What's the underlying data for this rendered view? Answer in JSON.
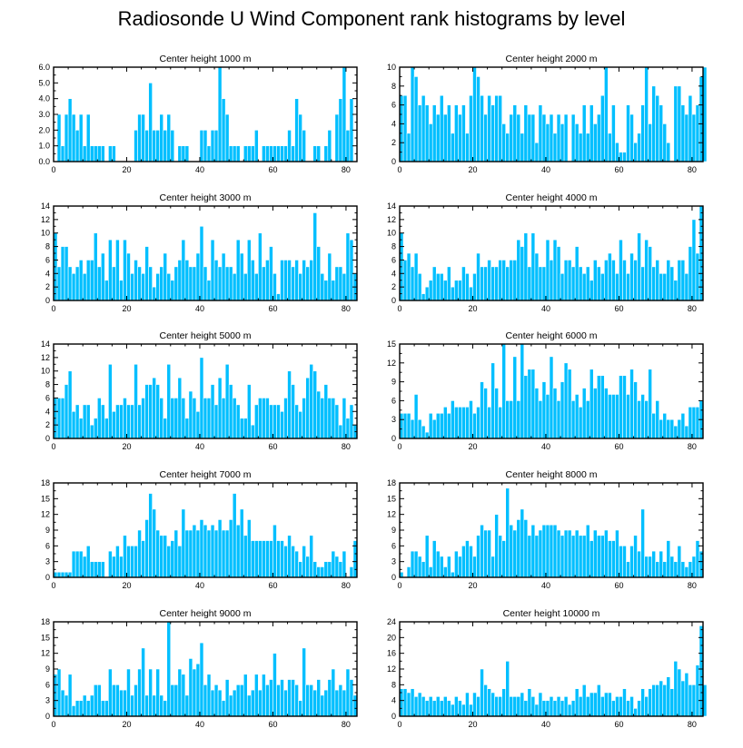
{
  "page_title": "Radiosonde U Wind Component rank histograms by level",
  "colors": {
    "bar": "#00bfff",
    "axis": "#000000"
  },
  "chart_data": [
    {
      "type": "bar",
      "title": "Center height 1000 m",
      "xlim": [
        0,
        83
      ],
      "ylim": [
        0,
        6
      ],
      "xticks": [
        0,
        20,
        40,
        60,
        80
      ],
      "yticks": [
        "0.0",
        "1.0",
        "2.0",
        "3.0",
        "4.0",
        "5.0",
        "6.0"
      ],
      "ytick_values": [
        0,
        1,
        2,
        3,
        4,
        5,
        6
      ],
      "values": [
        0,
        3,
        1,
        3,
        4,
        3,
        2,
        3,
        1,
        3,
        1,
        1,
        1,
        1,
        0,
        1,
        1,
        0,
        0,
        0,
        0,
        0,
        2,
        3,
        3,
        2,
        5,
        2,
        2,
        3,
        2,
        3,
        2,
        0,
        1,
        1,
        1,
        0,
        0,
        0,
        2,
        2,
        1,
        2,
        2,
        6,
        4,
        3,
        1,
        1,
        1,
        0,
        1,
        1,
        1,
        2,
        0,
        1,
        1,
        1,
        1,
        1,
        1,
        1,
        2,
        1,
        4,
        3,
        2,
        0,
        0,
        1,
        1,
        0,
        1,
        2,
        0,
        3,
        4,
        6,
        2,
        4,
        0
      ]
    },
    {
      "type": "bar",
      "title": "Center height 2000 m",
      "xlim": [
        0,
        83
      ],
      "ylim": [
        0,
        10
      ],
      "xticks": [
        0,
        20,
        40,
        60,
        80
      ],
      "yticks": [
        "0",
        "2",
        "4",
        "6",
        "8",
        "10"
      ],
      "ytick_values": [
        0,
        2,
        4,
        6,
        8,
        10
      ],
      "values": [
        7,
        7,
        3,
        10,
        9,
        6,
        7,
        6,
        4,
        6,
        5,
        7,
        5,
        6,
        3,
        6,
        5,
        6,
        3,
        7,
        10,
        9,
        7,
        5,
        7,
        6,
        7,
        7,
        4,
        3,
        5,
        6,
        5,
        3,
        6,
        5,
        5,
        2,
        6,
        5,
        4,
        5,
        3,
        5,
        4,
        5,
        0,
        5,
        4,
        3,
        6,
        3,
        6,
        4,
        5,
        7,
        10,
        3,
        6,
        2,
        1,
        1,
        6,
        5,
        2,
        3,
        6,
        10,
        4,
        8,
        7,
        6,
        4,
        2,
        0,
        8,
        8,
        6,
        5,
        7,
        5,
        6,
        9,
        10
      ]
    },
    {
      "type": "bar",
      "title": "Center height 3000 m",
      "xlim": [
        0,
        83
      ],
      "ylim": [
        0,
        14
      ],
      "xticks": [
        0,
        20,
        40,
        60,
        80
      ],
      "yticks": [
        "0",
        "2",
        "4",
        "6",
        "8",
        "10",
        "12",
        "14"
      ],
      "ytick_values": [
        0,
        2,
        4,
        6,
        8,
        10,
        12,
        14
      ],
      "values": [
        10,
        5,
        8,
        8,
        5,
        4,
        5,
        6,
        4,
        6,
        6,
        10,
        5,
        7,
        3,
        9,
        5,
        9,
        3,
        9,
        7,
        4,
        6,
        5,
        4,
        8,
        5,
        2,
        4,
        5,
        7,
        4,
        3,
        5,
        6,
        9,
        6,
        5,
        5,
        7,
        11,
        5,
        3,
        9,
        6,
        5,
        7,
        5,
        5,
        4,
        9,
        7,
        4,
        9,
        6,
        4,
        10,
        5,
        6,
        8,
        4,
        1,
        6,
        6,
        6,
        5,
        6,
        4,
        6,
        5,
        6,
        13,
        8,
        4,
        3,
        7,
        3,
        5,
        5,
        4,
        10,
        9,
        4
      ]
    },
    {
      "type": "bar",
      "title": "Center height 4000 m",
      "xlim": [
        0,
        83
      ],
      "ylim": [
        0,
        14
      ],
      "xticks": [
        0,
        20,
        40,
        60,
        80
      ],
      "yticks": [
        "0",
        "2",
        "4",
        "6",
        "8",
        "10",
        "12",
        "14"
      ],
      "ytick_values": [
        0,
        2,
        4,
        6,
        8,
        10,
        12,
        14
      ],
      "values": [
        10,
        6,
        7,
        5,
        7,
        4,
        1,
        2,
        3,
        5,
        4,
        4,
        3,
        5,
        2,
        3,
        3,
        5,
        4,
        2,
        4,
        7,
        5,
        5,
        6,
        5,
        5,
        6,
        6,
        5,
        6,
        6,
        9,
        8,
        10,
        5,
        10,
        7,
        5,
        5,
        9,
        6,
        9,
        8,
        4,
        6,
        6,
        5,
        8,
        5,
        4,
        5,
        3,
        6,
        5,
        4,
        6,
        7,
        6,
        4,
        9,
        6,
        4,
        7,
        6,
        10,
        5,
        9,
        8,
        5,
        6,
        4,
        4,
        6,
        5,
        3,
        6,
        6,
        4,
        8,
        12,
        7,
        14
      ]
    },
    {
      "type": "bar",
      "title": "Center height 5000 m",
      "xlim": [
        0,
        83
      ],
      "ylim": [
        0,
        14
      ],
      "xticks": [
        0,
        20,
        40,
        60,
        80
      ],
      "yticks": [
        "0",
        "2",
        "4",
        "6",
        "8",
        "10",
        "12",
        "14"
      ],
      "ytick_values": [
        0,
        2,
        4,
        6,
        8,
        10,
        12,
        14
      ],
      "values": [
        6,
        6,
        6,
        8,
        10,
        4,
        5,
        3,
        5,
        5,
        2,
        3,
        6,
        5,
        3,
        11,
        4,
        5,
        5,
        6,
        5,
        5,
        11,
        5,
        6,
        8,
        8,
        9,
        8,
        6,
        3,
        11,
        6,
        6,
        9,
        6,
        3,
        7,
        6,
        4,
        12,
        6,
        6,
        8,
        5,
        9,
        6,
        11,
        8,
        6,
        5,
        3,
        3,
        8,
        2,
        5,
        6,
        6,
        6,
        5,
        5,
        5,
        4,
        6,
        10,
        8,
        5,
        4,
        6,
        9,
        11,
        10,
        7,
        6,
        8,
        6,
        6,
        5,
        2,
        6,
        3,
        5,
        2
      ]
    },
    {
      "type": "bar",
      "title": "Center height 6000 m",
      "xlim": [
        0,
        83
      ],
      "ylim": [
        0,
        15
      ],
      "xticks": [
        0,
        20,
        40,
        60,
        80
      ],
      "yticks": [
        "0",
        "3",
        "6",
        "9",
        "12",
        "15"
      ],
      "ytick_values": [
        0,
        3,
        6,
        9,
        12,
        15
      ],
      "values": [
        4,
        4,
        4,
        3,
        7,
        3,
        2,
        1,
        4,
        3,
        4,
        4,
        5,
        4,
        6,
        5,
        5,
        5,
        5,
        6,
        4,
        5,
        9,
        8,
        5,
        12,
        8,
        5,
        15,
        6,
        6,
        13,
        6,
        15,
        10,
        11,
        11,
        8,
        6,
        9,
        7,
        13,
        8,
        6,
        9,
        12,
        11,
        6,
        7,
        5,
        8,
        6,
        11,
        8,
        10,
        10,
        8,
        7,
        7,
        7,
        10,
        10,
        7,
        11,
        9,
        6,
        7,
        6,
        11,
        4,
        6,
        3,
        4,
        3,
        3,
        2,
        3,
        4,
        2,
        5,
        5,
        5,
        6
      ]
    },
    {
      "type": "bar",
      "title": "Center height 7000 m",
      "xlim": [
        0,
        83
      ],
      "ylim": [
        0,
        18
      ],
      "xticks": [
        0,
        20,
        40,
        60,
        80
      ],
      "yticks": [
        "0",
        "3",
        "6",
        "9",
        "12",
        "15",
        "18"
      ],
      "ytick_values": [
        0,
        3,
        6,
        9,
        12,
        15,
        18
      ],
      "values": [
        1,
        1,
        1,
        1,
        1,
        5,
        5,
        5,
        4,
        6,
        3,
        3,
        3,
        3,
        0,
        5,
        4,
        6,
        4,
        8,
        6,
        6,
        6,
        9,
        7,
        11,
        16,
        13,
        9,
        8,
        8,
        6,
        7,
        9,
        6,
        13,
        9,
        9,
        10,
        9,
        11,
        10,
        9,
        10,
        9,
        11,
        9,
        9,
        11,
        16,
        10,
        13,
        8,
        11,
        7,
        7,
        7,
        7,
        7,
        7,
        10,
        7,
        7,
        6,
        8,
        6,
        5,
        3,
        6,
        4,
        8,
        3,
        2,
        2,
        3,
        3,
        5,
        4,
        3,
        5,
        0,
        2,
        7
      ]
    },
    {
      "type": "bar",
      "title": "Center height 8000 m",
      "xlim": [
        0,
        83
      ],
      "ylim": [
        0,
        18
      ],
      "xticks": [
        0,
        20,
        40,
        60,
        80
      ],
      "yticks": [
        "0",
        "3",
        "6",
        "9",
        "12",
        "15",
        "18"
      ],
      "ytick_values": [
        0,
        3,
        6,
        9,
        12,
        15,
        18
      ],
      "values": [
        1,
        0,
        2,
        5,
        5,
        4,
        3,
        8,
        2,
        7,
        5,
        4,
        2,
        4,
        1,
        5,
        4,
        6,
        7,
        6,
        4,
        8,
        10,
        9,
        9,
        4,
        12,
        8,
        7,
        17,
        10,
        9,
        11,
        13,
        11,
        8,
        10,
        8,
        9,
        10,
        10,
        10,
        10,
        9,
        8,
        9,
        9,
        8,
        9,
        8,
        8,
        10,
        7,
        9,
        8,
        8,
        9,
        7,
        7,
        9,
        6,
        6,
        3,
        6,
        8,
        5,
        13,
        4,
        4,
        5,
        3,
        5,
        3,
        7,
        4,
        3,
        6,
        3,
        2,
        3,
        4,
        7,
        5
      ]
    },
    {
      "type": "bar",
      "title": "Center height 9000 m",
      "xlim": [
        0,
        83
      ],
      "ylim": [
        0,
        18
      ],
      "xticks": [
        0,
        20,
        40,
        60,
        80
      ],
      "yticks": [
        "0",
        "3",
        "6",
        "9",
        "12",
        "15",
        "18"
      ],
      "ytick_values": [
        0,
        3,
        6,
        9,
        12,
        15,
        18
      ],
      "values": [
        8,
        9,
        5,
        4,
        8,
        2,
        3,
        3,
        4,
        3,
        4,
        6,
        6,
        3,
        3,
        9,
        6,
        6,
        5,
        5,
        9,
        4,
        6,
        9,
        13,
        4,
        9,
        4,
        9,
        4,
        3,
        18,
        6,
        6,
        9,
        8,
        4,
        11,
        9,
        10,
        14,
        6,
        8,
        5,
        6,
        5,
        3,
        7,
        4,
        5,
        6,
        6,
        8,
        4,
        5,
        8,
        5,
        8,
        6,
        7,
        12,
        6,
        7,
        5,
        7,
        7,
        6,
        3,
        13,
        6,
        6,
        5,
        7,
        4,
        5,
        7,
        9,
        5,
        6,
        5,
        9,
        7,
        4
      ]
    },
    {
      "type": "bar",
      "title": "Center height 10000 m",
      "xlim": [
        0,
        83
      ],
      "ylim": [
        0,
        24
      ],
      "xticks": [
        0,
        20,
        40,
        60,
        80
      ],
      "yticks": [
        "0",
        "4",
        "8",
        "12",
        "16",
        "20",
        "24"
      ],
      "ytick_values": [
        0,
        4,
        8,
        12,
        16,
        20,
        24
      ],
      "values": [
        7,
        7,
        6,
        7,
        5,
        6,
        5,
        4,
        5,
        4,
        5,
        4,
        5,
        4,
        3,
        5,
        4,
        3,
        6,
        3,
        6,
        5,
        12,
        8,
        7,
        6,
        5,
        5,
        7,
        14,
        5,
        5,
        5,
        6,
        4,
        7,
        5,
        3,
        6,
        4,
        4,
        5,
        4,
        5,
        4,
        5,
        3,
        4,
        7,
        5,
        8,
        5,
        6,
        6,
        8,
        5,
        6,
        6,
        4,
        5,
        5,
        7,
        4,
        5,
        2,
        4,
        7,
        5,
        7,
        8,
        8,
        9,
        8,
        10,
        7,
        14,
        12,
        9,
        11,
        8,
        8,
        13,
        23,
        8
      ]
    }
  ]
}
